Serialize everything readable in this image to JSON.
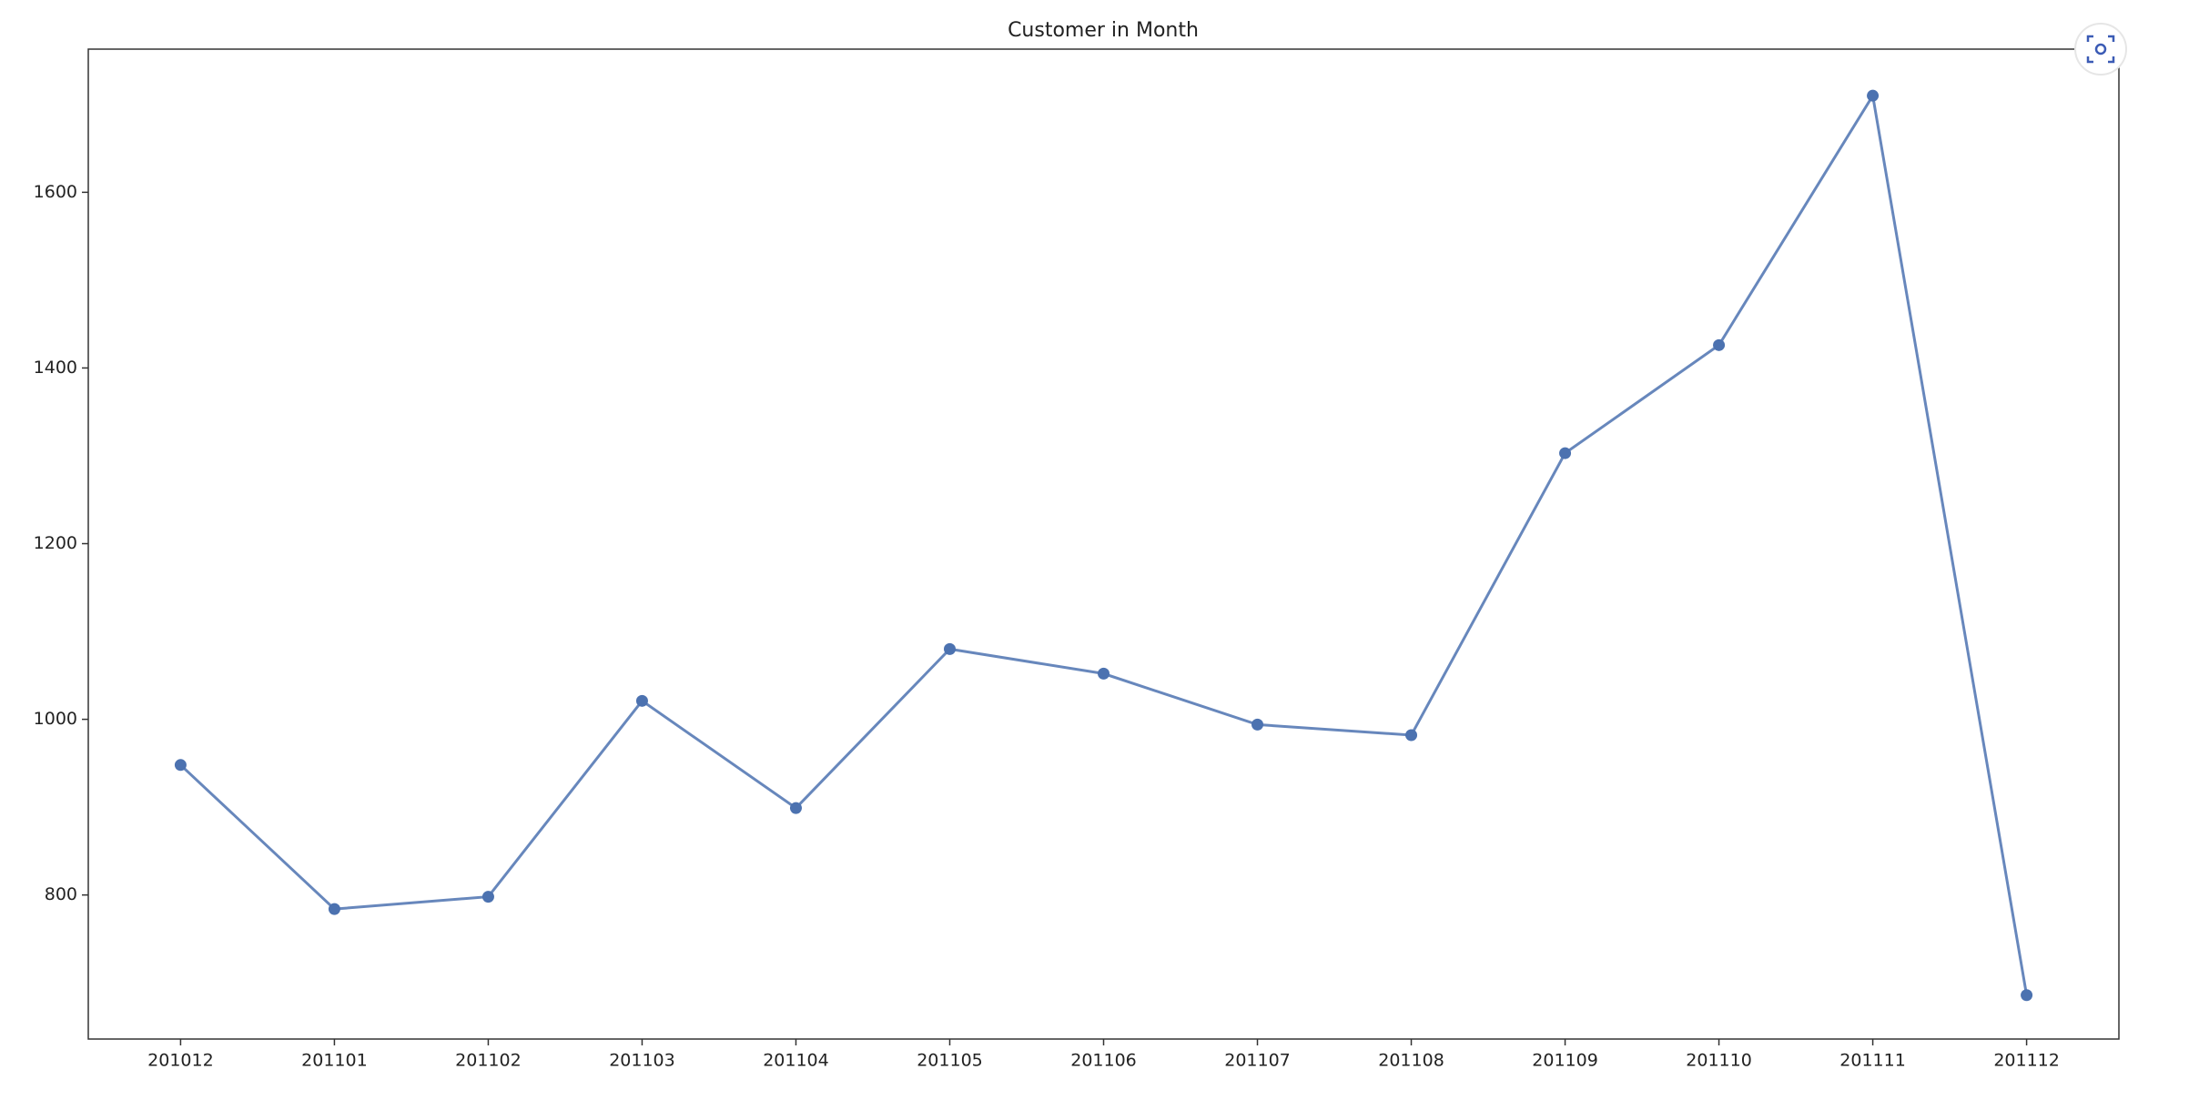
{
  "chart_data": {
    "type": "line",
    "title": "Customer in Month",
    "categories": [
      "201012",
      "201101",
      "201102",
      "201103",
      "201104",
      "201105",
      "201106",
      "201107",
      "201108",
      "201109",
      "201110",
      "201111",
      "201112"
    ],
    "series": [
      {
        "name": "Customer",
        "color": "#4c72b0",
        "values": [
          948,
          784,
          798,
          1021,
          899,
          1080,
          1052,
          994,
          982,
          1303,
          1426,
          1710,
          686
        ]
      }
    ],
    "ylim": [
      636,
      1763
    ],
    "yticks": [
      800,
      1000,
      1200,
      1400,
      1600
    ],
    "grid": false
  }
}
